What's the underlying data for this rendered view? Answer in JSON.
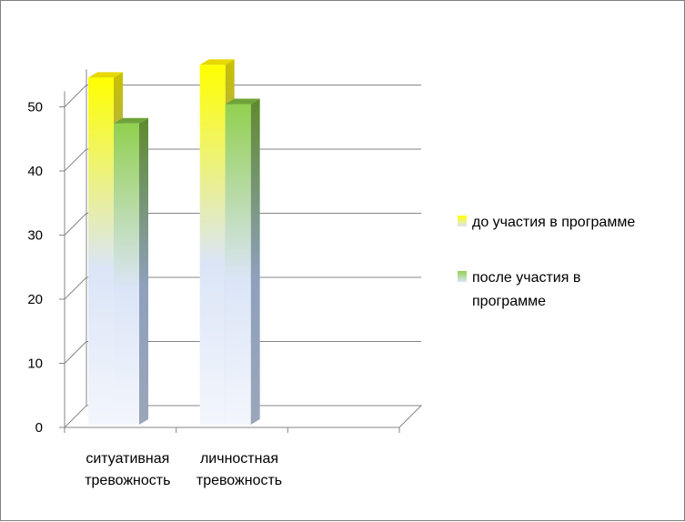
{
  "chart_data": {
    "type": "bar",
    "style": "3d-clustered-column",
    "categories": [
      [
        "ситуативная",
        "тревожность"
      ],
      [
        "личностная",
        "тревожность"
      ],
      [
        "",
        ""
      ]
    ],
    "series": [
      {
        "name": [
          "до участия в программе"
        ],
        "values": [
          52,
          54,
          null
        ],
        "colors": {
          "top": "#ffff00",
          "bottom": "#dbe5f7",
          "side": "#c9c000",
          "cap": "#e6d800"
        }
      },
      {
        "name": [
          "после участия в",
          "программе"
        ],
        "values": [
          46,
          49,
          null
        ],
        "colors": {
          "top": "#92d050",
          "bottom": "#dbe5f7",
          "side": "#5f8a2c",
          "cap": "#6fa33a"
        }
      }
    ],
    "yticks": [
      0,
      10,
      20,
      30,
      40,
      50
    ],
    "ylim": [
      0,
      55
    ],
    "grid": true,
    "legend_position": "right",
    "gridline_color": "#868686",
    "axis_color": "#868686"
  }
}
